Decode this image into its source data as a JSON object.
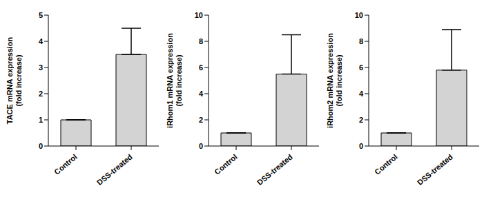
{
  "chart_data": [
    {
      "type": "bar",
      "ylabel": "TACE mRNA expression (fold increase)",
      "categories": [
        "Control",
        "DSS-treated"
      ],
      "values": [
        1,
        3.5
      ],
      "errors": [
        0,
        1.0
      ],
      "color": "#d3d3d3",
      "ylim": [
        0,
        5
      ],
      "yticks": [
        0,
        1,
        2,
        3,
        4,
        5
      ],
      "grid": false
    },
    {
      "type": "bar",
      "ylabel": "iRhom1 mRNA expression (fold increase)",
      "categories": [
        "Control",
        "DSS-treated"
      ],
      "values": [
        1,
        5.5
      ],
      "errors": [
        0,
        3.0
      ],
      "color": "#d3d3d3",
      "ylim": [
        0,
        10
      ],
      "yticks": [
        0,
        2,
        4,
        6,
        8,
        10
      ],
      "grid": false
    },
    {
      "type": "bar",
      "ylabel": "iRhom2 mRNA expression (fold increase)",
      "categories": [
        "Control",
        "DSS-treated"
      ],
      "values": [
        1,
        5.8
      ],
      "errors": [
        0,
        3.1
      ],
      "color": "#d3d3d3",
      "ylim": [
        0,
        10
      ],
      "yticks": [
        0,
        2,
        4,
        6,
        8,
        10
      ],
      "grid": false
    }
  ]
}
